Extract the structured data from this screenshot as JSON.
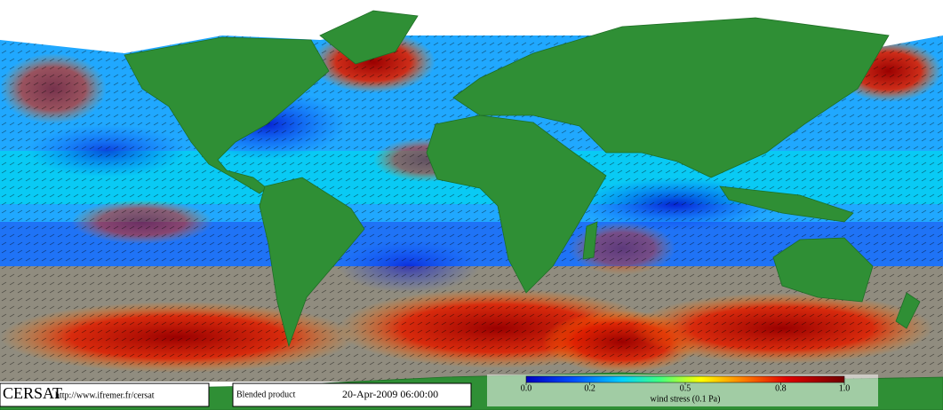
{
  "credit": {
    "brand": "CERSAT",
    "url": "http://www.ifremer.fr/cersat"
  },
  "product": "Blended product",
  "datetime": "20-Apr-2009 06:00:00",
  "colorbar": {
    "label": "wind stress (0.1 Pa)",
    "lim": [
      0,
      1
    ],
    "ticks": [
      {
        "value": 0,
        "label": "0.0"
      },
      0.2,
      0.5,
      0.8,
      {
        "value": 1,
        "label": "1.0"
      }
    ]
  }
}
